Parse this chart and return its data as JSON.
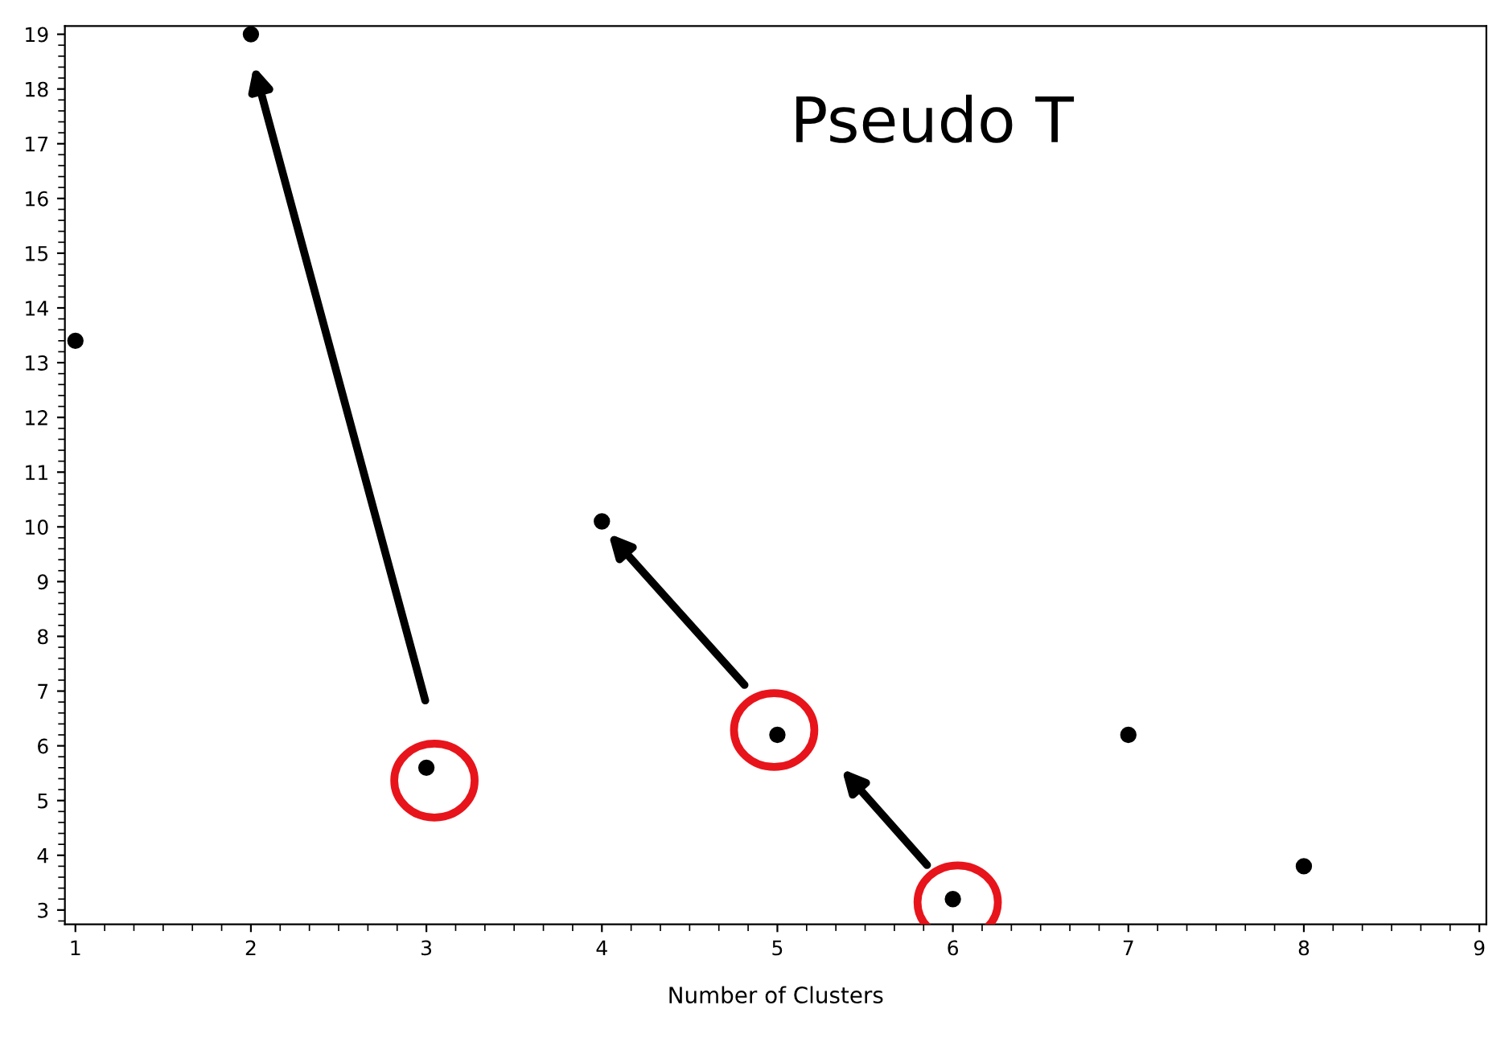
{
  "chart_data": {
    "type": "scatter",
    "xlabel": "Number of Clusters",
    "x": [
      1,
      2,
      3,
      4,
      5,
      6,
      7,
      8
    ],
    "values": [
      13.4,
      19.0,
      5.6,
      10.1,
      6.2,
      3.2,
      6.2,
      3.8
    ],
    "color": "#000000",
    "marker": "circle",
    "xlim": [
      0.94,
      9.04
    ],
    "xticks": [
      1,
      2,
      3,
      4,
      5,
      6,
      7,
      8,
      9
    ],
    "ylim": [
      2.74,
      19.15
    ],
    "yticks": [
      3,
      4,
      5,
      6,
      7,
      8,
      9,
      10,
      11,
      12,
      13,
      14,
      15,
      16,
      17,
      18,
      19
    ],
    "grid": false,
    "legend": false,
    "annotations": [
      "Pseudo T"
    ]
  }
}
